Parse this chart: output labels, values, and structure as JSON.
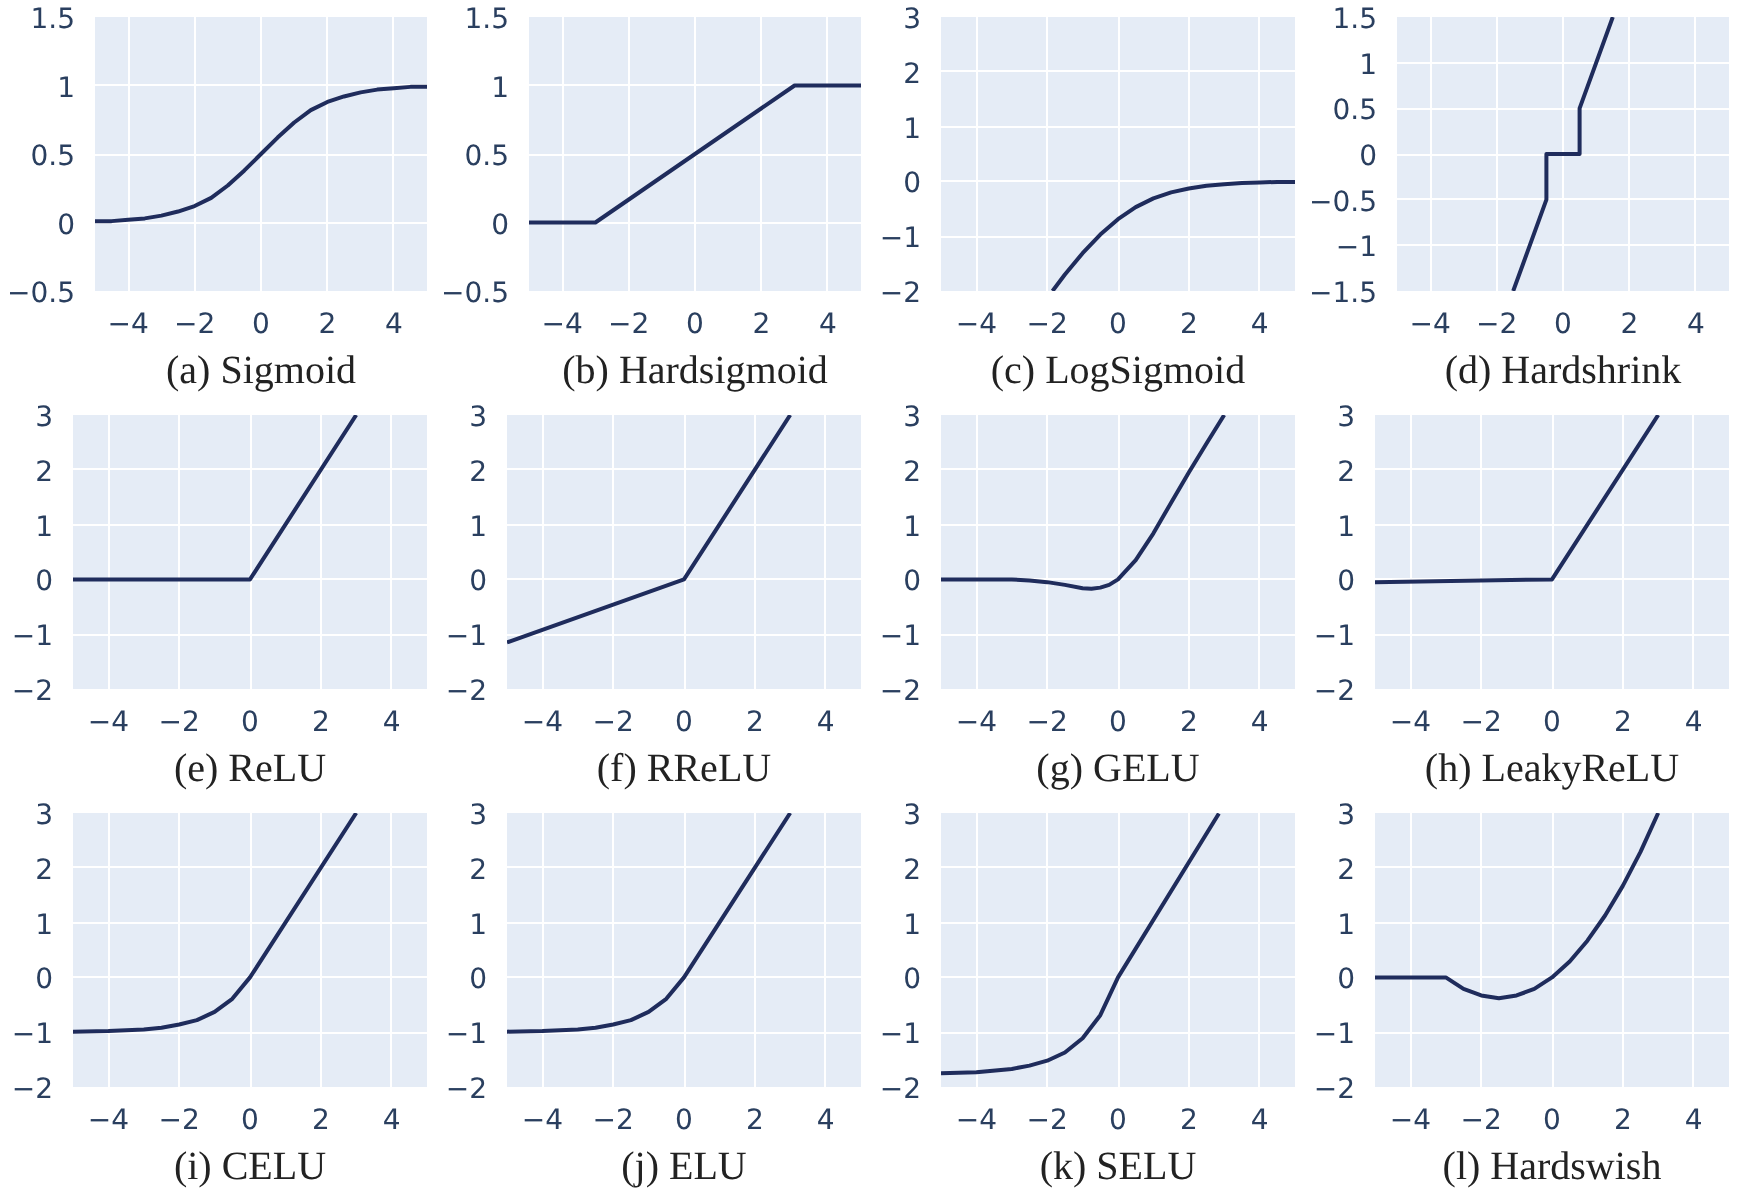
{
  "chart_data": [
    {
      "type": "line",
      "title": "(a) Sigmoid",
      "color": "#1f2c5c",
      "grid": true,
      "xlim": [
        -5,
        5
      ],
      "xticks": [
        -4,
        -2,
        0,
        2,
        4
      ],
      "ylim": [
        -0.5,
        1.5
      ],
      "yticks": [
        -0.5,
        0,
        0.5,
        1,
        1.5
      ],
      "x": [
        -5,
        -4.5,
        -4,
        -3.5,
        -3,
        -2.5,
        -2,
        -1.5,
        -1,
        -0.5,
        0,
        0.5,
        1,
        1.5,
        2,
        2.5,
        3,
        3.5,
        4,
        4.5,
        5
      ],
      "values": [
        0.01,
        0.01,
        0.02,
        0.03,
        0.05,
        0.08,
        0.12,
        0.18,
        0.27,
        0.38,
        0.5,
        0.62,
        0.73,
        0.82,
        0.88,
        0.92,
        0.95,
        0.97,
        0.98,
        0.99,
        0.99
      ]
    },
    {
      "type": "line",
      "title": "(b) Hardsigmoid",
      "color": "#1f2c5c",
      "grid": true,
      "xlim": [
        -5,
        5
      ],
      "xticks": [
        -4,
        -2,
        0,
        2,
        4
      ],
      "ylim": [
        -0.5,
        1.5
      ],
      "yticks": [
        -0.5,
        0,
        0.5,
        1,
        1.5
      ],
      "x": [
        -5,
        -3,
        3,
        5
      ],
      "values": [
        0,
        0,
        1,
        1
      ]
    },
    {
      "type": "line",
      "title": "(c) LogSigmoid",
      "color": "#1f2c5c",
      "grid": true,
      "xlim": [
        -5,
        5
      ],
      "xticks": [
        -4,
        -2,
        0,
        2,
        4
      ],
      "ylim": [
        -2,
        3
      ],
      "yticks": [
        -2,
        -1,
        0,
        1,
        2,
        3
      ],
      "x": [
        -1.85,
        -1.5,
        -1,
        -0.5,
        0,
        0.5,
        1,
        1.5,
        2,
        2.5,
        3,
        3.5,
        4,
        4.5,
        5
      ],
      "values": [
        -2.0,
        -1.7,
        -1.31,
        -0.97,
        -0.69,
        -0.47,
        -0.31,
        -0.2,
        -0.13,
        -0.08,
        -0.05,
        -0.03,
        -0.02,
        -0.01,
        -0.01
      ]
    },
    {
      "type": "line",
      "title": "(d) Hardshrink",
      "color": "#1f2c5c",
      "grid": true,
      "xlim": [
        -5,
        5
      ],
      "xticks": [
        -4,
        -2,
        0,
        2,
        4
      ],
      "ylim": [
        -1.5,
        1.5
      ],
      "yticks": [
        -1.5,
        -1,
        -0.5,
        0,
        0.5,
        1,
        1.5
      ],
      "x": [
        -1.5,
        -0.5,
        -0.5,
        0.5,
        0.5,
        1.5
      ],
      "values": [
        -1.5,
        -0.5,
        0,
        0,
        0.5,
        1.5
      ]
    },
    {
      "type": "line",
      "title": "(e) ReLU",
      "color": "#1f2c5c",
      "grid": true,
      "xlim": [
        -5,
        5
      ],
      "xticks": [
        -4,
        -2,
        0,
        2,
        4
      ],
      "ylim": [
        -2,
        3
      ],
      "yticks": [
        -2,
        -1,
        0,
        1,
        2,
        3
      ],
      "x": [
        -5,
        0,
        3
      ],
      "values": [
        0,
        0,
        3
      ]
    },
    {
      "type": "line",
      "title": "(f) RReLU",
      "color": "#1f2c5c",
      "grid": true,
      "xlim": [
        -5,
        5
      ],
      "xticks": [
        -4,
        -2,
        0,
        2,
        4
      ],
      "ylim": [
        -2,
        3
      ],
      "yticks": [
        -2,
        -1,
        0,
        1,
        2,
        3
      ],
      "x": [
        -5,
        0,
        3
      ],
      "values": [
        -1.15,
        0,
        3
      ]
    },
    {
      "type": "line",
      "title": "(g) GELU",
      "color": "#1f2c5c",
      "grid": true,
      "xlim": [
        -5,
        5
      ],
      "xticks": [
        -4,
        -2,
        0,
        2,
        4
      ],
      "ylim": [
        -2,
        3
      ],
      "yticks": [
        -2,
        -1,
        0,
        1,
        2,
        3
      ],
      "x": [
        -5,
        -4,
        -3,
        -2.5,
        -2,
        -1.5,
        -1,
        -0.75,
        -0.5,
        -0.25,
        0,
        0.5,
        1,
        1.5,
        2,
        2.5,
        3
      ],
      "values": [
        0,
        0,
        -0.0,
        -0.02,
        -0.05,
        -0.1,
        -0.16,
        -0.17,
        -0.15,
        -0.1,
        0,
        0.35,
        0.84,
        1.4,
        1.95,
        2.48,
        3.0
      ]
    },
    {
      "type": "line",
      "title": "(h) LeakyReLU",
      "color": "#1f2c5c",
      "grid": true,
      "xlim": [
        -5,
        5
      ],
      "xticks": [
        -4,
        -2,
        0,
        2,
        4
      ],
      "ylim": [
        -2,
        3
      ],
      "yticks": [
        -2,
        -1,
        0,
        1,
        2,
        3
      ],
      "x": [
        -5,
        0,
        3
      ],
      "values": [
        -0.05,
        0,
        3
      ]
    },
    {
      "type": "line",
      "title": "(i) CELU",
      "color": "#1f2c5c",
      "grid": true,
      "xlim": [
        -5,
        5
      ],
      "xticks": [
        -4,
        -2,
        0,
        2,
        4
      ],
      "ylim": [
        -2,
        3
      ],
      "yticks": [
        -2,
        -1,
        0,
        1,
        2,
        3
      ],
      "x": [
        -5,
        -4,
        -3,
        -2.5,
        -2,
        -1.5,
        -1,
        -0.5,
        0,
        3
      ],
      "values": [
        -0.99,
        -0.98,
        -0.95,
        -0.92,
        -0.86,
        -0.78,
        -0.63,
        -0.39,
        0,
        3
      ]
    },
    {
      "type": "line",
      "title": "(j) ELU",
      "color": "#1f2c5c",
      "grid": true,
      "xlim": [
        -5,
        5
      ],
      "xticks": [
        -4,
        -2,
        0,
        2,
        4
      ],
      "ylim": [
        -2,
        3
      ],
      "yticks": [
        -2,
        -1,
        0,
        1,
        2,
        3
      ],
      "x": [
        -5,
        -4,
        -3,
        -2.5,
        -2,
        -1.5,
        -1,
        -0.5,
        0,
        3
      ],
      "values": [
        -0.99,
        -0.98,
        -0.95,
        -0.92,
        -0.86,
        -0.78,
        -0.63,
        -0.39,
        0,
        3
      ]
    },
    {
      "type": "line",
      "title": "(k) SELU",
      "color": "#1f2c5c",
      "grid": true,
      "xlim": [
        -5,
        5
      ],
      "xticks": [
        -4,
        -2,
        0,
        2,
        4
      ],
      "ylim": [
        -2,
        3
      ],
      "yticks": [
        -2,
        -1,
        0,
        1,
        2,
        3
      ],
      "x": [
        -5,
        -4,
        -3,
        -2.5,
        -2,
        -1.5,
        -1,
        -0.5,
        0,
        2.85
      ],
      "values": [
        -1.75,
        -1.73,
        -1.67,
        -1.61,
        -1.52,
        -1.37,
        -1.11,
        -0.69,
        0,
        2.99
      ]
    },
    {
      "type": "line",
      "title": "(l) Hardswish",
      "color": "#1f2c5c",
      "grid": true,
      "xlim": [
        -5,
        5
      ],
      "xticks": [
        -4,
        -2,
        0,
        2,
        4
      ],
      "ylim": [
        -2,
        3
      ],
      "yticks": [
        -2,
        -1,
        0,
        1,
        2,
        3
      ],
      "x": [
        -5,
        -3,
        -2.5,
        -2,
        -1.5,
        -1,
        -0.5,
        0,
        0.5,
        1,
        1.5,
        2,
        2.5,
        3
      ],
      "values": [
        0,
        0,
        -0.21,
        -0.33,
        -0.38,
        -0.33,
        -0.21,
        0,
        0.29,
        0.67,
        1.13,
        1.67,
        2.29,
        3
      ]
    }
  ]
}
